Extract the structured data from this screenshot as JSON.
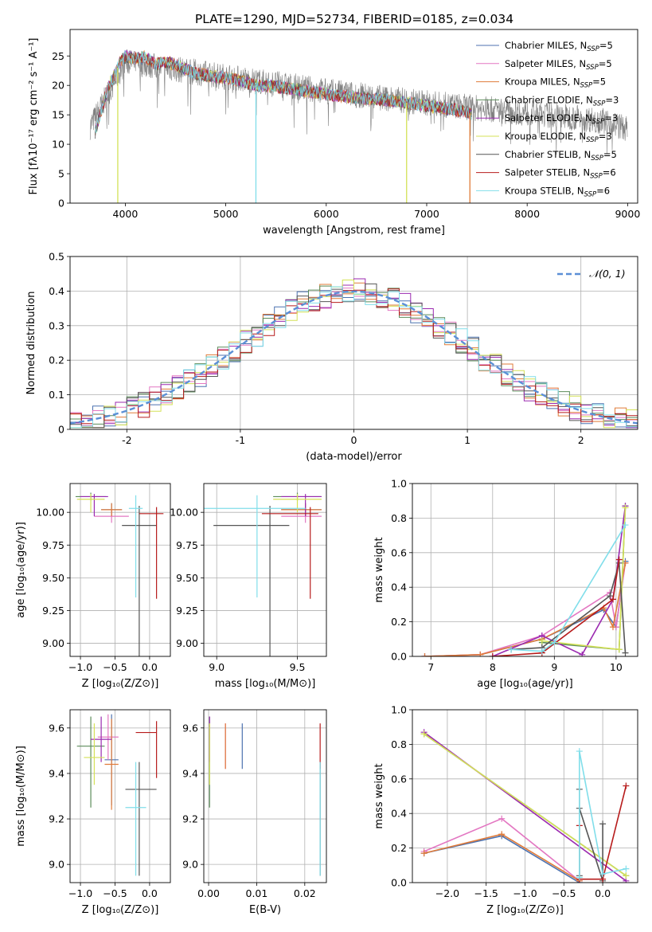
{
  "figure_title": "PLATE=1290, MJD=52734, FIBERID=0185, z=0.034",
  "models": [
    {
      "name": "Chabrier MILES, N",
      "sub": "SSP",
      "tail": "=5",
      "color": "#4c72b0"
    },
    {
      "name": "Salpeter MILES, N",
      "sub": "SSP",
      "tail": "=5",
      "color": "#e377c2"
    },
    {
      "name": "Kroupa MILES, N",
      "sub": "SSP",
      "tail": "=5",
      "color": "#e07b39"
    },
    {
      "name": "Chabrier ELODIE, N",
      "sub": "SSP",
      "tail": "=3",
      "color": "#5b8c5a"
    },
    {
      "name": "Salpeter ELODIE, N",
      "sub": "SSP",
      "tail": "=3",
      "color": "#9b2ab0"
    },
    {
      "name": "Kroupa ELODIE, N",
      "sub": "SSP",
      "tail": "=3",
      "color": "#d4e157"
    },
    {
      "name": "Chabrier STELIB, N",
      "sub": "SSP",
      "tail": "=5",
      "color": "#555555"
    },
    {
      "name": "Salpeter STELIB, N",
      "sub": "SSP",
      "tail": "=6",
      "color": "#b71c1c"
    },
    {
      "name": "Kroupa STELIB, N",
      "sub": "SSP",
      "tail": "=6",
      "color": "#80deea"
    }
  ],
  "chart_data": [
    {
      "id": "spectrum",
      "type": "line",
      "xlabel": "wavelength [Angstrom, rest frame]",
      "ylabel": "Flux [fλ10⁻¹⁷ erg cm⁻² s⁻¹ A⁻¹]",
      "xlim": [
        3450,
        9100
      ],
      "ylim": [
        0,
        29.5
      ],
      "xticks": [
        4000,
        5000,
        6000,
        7000,
        8000,
        9000
      ],
      "yticks": [
        0,
        5,
        10,
        15,
        20,
        25
      ],
      "continuum": {
        "x": [
          3700,
          3750,
          3800,
          3850,
          3900,
          3950,
          4000,
          4100,
          4200,
          4300,
          4400,
          4500,
          4700,
          4900,
          5100,
          5300,
          5500,
          5700,
          5900,
          6100,
          6300,
          6500,
          6700,
          6900,
          7100,
          7300,
          7450
        ],
        "y": [
          12,
          15,
          18,
          20.5,
          22,
          24,
          25,
          24.5,
          24.8,
          23.5,
          24,
          23.5,
          22,
          21.5,
          21,
          20,
          19.8,
          19.3,
          18.8,
          18.3,
          17.9,
          17.6,
          17.3,
          16.8,
          16.3,
          15.8,
          15.2
        ]
      },
      "noise_continuum": {
        "x": [
          3650,
          4000,
          5000,
          6000,
          7000,
          8000,
          8500,
          8800,
          9000
        ],
        "y": [
          13,
          24,
          21.5,
          19,
          17,
          15.3,
          14.5,
          13.9,
          12.5
        ]
      },
      "dips": [
        {
          "x": 3925,
          "color": "#d4e157"
        },
        {
          "x": 5300,
          "color": "#80deea"
        },
        {
          "x": 6800,
          "color": "#d4e157"
        },
        {
          "x": 7430,
          "color": "#e07b39"
        }
      ]
    },
    {
      "id": "residuals",
      "type": "histogram",
      "xlabel": "(data-model)/error",
      "ylabel": "Normed distribution",
      "xlim": [
        -2.5,
        2.5
      ],
      "ylim": [
        0,
        0.5
      ],
      "xticks": [
        -2,
        -1,
        0,
        1,
        2
      ],
      "yticks": [
        0,
        0.1,
        0.2,
        0.3,
        0.4,
        0.5
      ],
      "bins": {
        "start": -2.5,
        "width": 0.1,
        "count": 50
      },
      "reference": {
        "label": "𝒩(0, 1)",
        "mean": 0,
        "sigma": 1,
        "color": "#5b8fd6"
      }
    },
    {
      "id": "age-vs-Z",
      "type": "errorbar",
      "xlabel": "Z [log₁₀(Z/Z⊙)]",
      "ylabel": "age  [log₁₀(age/yr)]",
      "xlim": [
        -1.15,
        0.3
      ],
      "ylim": [
        8.9,
        10.22
      ],
      "xticks": [
        -1.0,
        -0.5,
        0.0
      ],
      "xtick_labels": [
        "−1.0",
        "−0.5",
        "0.0"
      ],
      "yticks": [
        9.0,
        9.25,
        9.5,
        9.75,
        10.0
      ],
      "ytick_labels": [
        "9.00",
        "9.25",
        "9.50",
        "9.75",
        "10.00"
      ],
      "points": [
        {
          "m": 0,
          "x": -0.55,
          "xe": [
            0.15,
            0.15
          ],
          "y": 10.02,
          "ye": [
            0.05,
            0.05
          ]
        },
        {
          "m": 1,
          "x": -0.55,
          "xe": [
            0.25,
            0.25
          ],
          "y": 9.97,
          "ye": [
            0.05,
            0.05
          ]
        },
        {
          "m": 2,
          "x": -0.55,
          "xe": [
            0.15,
            0.15
          ],
          "y": 10.02,
          "ye": [
            0.05,
            0.05
          ]
        },
        {
          "m": 3,
          "x": -0.85,
          "xe": [
            0.22,
            0.22
          ],
          "y": 10.12,
          "ye": [
            0.03,
            0.03
          ]
        },
        {
          "m": 4,
          "x": -0.8,
          "xe": [
            0.2,
            0.2
          ],
          "y": 10.12,
          "ye": [
            0.15,
            0.02
          ]
        },
        {
          "m": 5,
          "x": -0.85,
          "xe": [
            0.2,
            0.2
          ],
          "y": 10.1,
          "ye": [
            0.1,
            0.04
          ]
        },
        {
          "m": 6,
          "x": -0.15,
          "xe": [
            0.25,
            0.25
          ],
          "y": 9.9,
          "ye": [
            1.05,
            0.15
          ]
        },
        {
          "m": 7,
          "x": 0.1,
          "xe": [
            0.25,
            0.1
          ],
          "y": 9.99,
          "ye": [
            0.65,
            0.05
          ]
        },
        {
          "m": 8,
          "x": -0.2,
          "xe": [
            0.1,
            0.1
          ],
          "y": 10.03,
          "ye": [
            0.68,
            0.1
          ]
        }
      ]
    },
    {
      "id": "age-vs-mass",
      "type": "errorbar",
      "xlabel": "mass [log₁₀(M/M⊙)]",
      "ylabel": "",
      "xlim": [
        8.92,
        9.68
      ],
      "ylim": [
        8.9,
        10.22
      ],
      "xticks": [
        9.0,
        9.5
      ],
      "xtick_labels": [
        "9.0",
        "9.5"
      ],
      "yticks": [
        9.0,
        9.25,
        9.5,
        9.75,
        10.0
      ],
      "ytick_labels": [
        "9.00",
        "9.25",
        "9.50",
        "9.75",
        "10.00"
      ],
      "points": [
        {
          "m": 0,
          "x": 9.55,
          "xe": [
            0.15,
            0.1
          ],
          "y": 10.02,
          "ye": [
            0.05,
            0.05
          ]
        },
        {
          "m": 1,
          "x": 9.55,
          "xe": [
            0.15,
            0.1
          ],
          "y": 9.97,
          "ye": [
            0.05,
            0.05
          ]
        },
        {
          "m": 2,
          "x": 9.55,
          "xe": [
            0.15,
            0.1
          ],
          "y": 10.02,
          "ye": [
            0.05,
            0.05
          ]
        },
        {
          "m": 3,
          "x": 9.5,
          "xe": [
            0.15,
            0.15
          ],
          "y": 10.12,
          "ye": [
            0.03,
            0.03
          ]
        },
        {
          "m": 4,
          "x": 9.55,
          "xe": [
            0.15,
            0.1
          ],
          "y": 10.12,
          "ye": [
            0.15,
            0.02
          ]
        },
        {
          "m": 5,
          "x": 9.5,
          "xe": [
            0.15,
            0.15
          ],
          "y": 10.1,
          "ye": [
            0.1,
            0.04
          ]
        },
        {
          "m": 6,
          "x": 9.33,
          "xe": [
            0.35,
            0.12
          ],
          "y": 9.9,
          "ye": [
            1.05,
            0.15
          ]
        },
        {
          "m": 7,
          "x": 9.58,
          "xe": [
            0.3,
            0.05
          ],
          "y": 9.99,
          "ye": [
            0.65,
            0.05
          ]
        },
        {
          "m": 8,
          "x": 9.25,
          "xe": [
            0.35,
            0.3
          ],
          "y": 10.03,
          "ye": [
            0.68,
            0.1
          ]
        }
      ]
    },
    {
      "id": "weight-vs-age",
      "type": "line",
      "xlabel": "age  [log₁₀(age/yr)]",
      "ylabel": "mass weight",
      "xlim": [
        6.7,
        10.35
      ],
      "ylim": [
        0,
        1.0
      ],
      "xticks": [
        7,
        8,
        9,
        10
      ],
      "xtick_labels": [
        "7",
        "8",
        "9",
        "10"
      ],
      "yticks": [
        0,
        0.2,
        0.4,
        0.6,
        0.8,
        1.0
      ],
      "ytick_labels": [
        "0.0",
        "0.2",
        "0.4",
        "0.6",
        "0.8",
        "1.0"
      ],
      "series": [
        {
          "m": 0,
          "x": [
            6.9,
            7.8,
            8.8,
            9.8,
            10.0,
            10.15
          ],
          "y": [
            0.0,
            0.01,
            0.1,
            0.27,
            0.17,
            0.55
          ]
        },
        {
          "m": 1,
          "x": [
            6.9,
            7.8,
            8.8,
            9.9,
            10.0,
            10.15
          ],
          "y": [
            0.0,
            0.01,
            0.12,
            0.37,
            0.17,
            0.54
          ]
        },
        {
          "m": 2,
          "x": [
            6.9,
            7.8,
            8.8,
            9.8,
            9.95,
            10.15
          ],
          "y": [
            0.0,
            0.01,
            0.1,
            0.28,
            0.17,
            0.54
          ]
        },
        {
          "m": 3,
          "x": [
            8.8,
            10.05,
            10.15
          ],
          "y": [
            0.08,
            0.04,
            0.87
          ]
        },
        {
          "m": 4,
          "x": [
            8.0,
            8.8,
            9.45,
            9.95,
            10.15
          ],
          "y": [
            0.0,
            0.12,
            0.01,
            0.33,
            0.87
          ]
        },
        {
          "m": 5,
          "x": [
            8.8,
            10.05,
            10.15
          ],
          "y": [
            0.09,
            0.04,
            0.86
          ]
        },
        {
          "m": 6,
          "x": [
            8.3,
            8.8,
            9.9,
            10.05,
            10.15
          ],
          "y": [
            0.04,
            0.05,
            0.35,
            0.54,
            0.02
          ]
        },
        {
          "m": 7,
          "x": [
            8.0,
            8.8,
            9.95,
            10.05
          ],
          "y": [
            0.0,
            0.02,
            0.33,
            0.56
          ]
        },
        {
          "m": 8,
          "x": [
            8.3,
            8.8,
            9.0,
            10.15
          ],
          "y": [
            0.04,
            0.03,
            0.08,
            0.76
          ]
        }
      ]
    },
    {
      "id": "mass-vs-Z",
      "type": "errorbar",
      "xlabel": "Z [log₁₀(Z/Z⊙)]",
      "ylabel": "mass [log₁₀(M/M⊙)]",
      "xlim": [
        -1.15,
        0.3
      ],
      "ylim": [
        8.92,
        9.68
      ],
      "xticks": [
        -1.0,
        -0.5,
        0.0
      ],
      "xtick_labels": [
        "−1.0",
        "−0.5",
        "0.0"
      ],
      "yticks": [
        9.0,
        9.2,
        9.4,
        9.6
      ],
      "ytick_labels": [
        "9.0",
        "9.2",
        "9.4",
        "9.6"
      ],
      "points": [
        {
          "m": 0,
          "x": -0.55,
          "xe": [
            0.1,
            0.1
          ],
          "y": 9.46,
          "ye": [
            0.2,
            0.2
          ]
        },
        {
          "m": 1,
          "x": -0.6,
          "xe": [
            0.15,
            0.15
          ],
          "y": 9.56,
          "ye": [
            0.1,
            0.1
          ]
        },
        {
          "m": 2,
          "x": -0.55,
          "xe": [
            0.1,
            0.1
          ],
          "y": 9.44,
          "ye": [
            0.2,
            0.2
          ]
        },
        {
          "m": 3,
          "x": -0.85,
          "xe": [
            0.2,
            0.2
          ],
          "y": 9.52,
          "ye": [
            0.27,
            0.13
          ]
        },
        {
          "m": 4,
          "x": -0.7,
          "xe": [
            0.15,
            0.15
          ],
          "y": 9.55,
          "ye": [
            0.1,
            0.1
          ]
        },
        {
          "m": 5,
          "x": -0.8,
          "xe": [
            0.15,
            0.15
          ],
          "y": 9.47,
          "ye": [
            0.12,
            0.15
          ]
        },
        {
          "m": 6,
          "x": -0.15,
          "xe": [
            0.2,
            0.25
          ],
          "y": 9.33,
          "ye": [
            0.38,
            0.12
          ]
        },
        {
          "m": 7,
          "x": 0.1,
          "xe": [
            0.3,
            0.0
          ],
          "y": 9.58,
          "ye": [
            0.2,
            0.05
          ]
        },
        {
          "m": 8,
          "x": -0.2,
          "xe": [
            0.15,
            0.15
          ],
          "y": 9.25,
          "ye": [
            0.3,
            0.2
          ]
        }
      ]
    },
    {
      "id": "mass-vs-EBV",
      "type": "errorbar",
      "xlabel": "E(B-V)",
      "ylabel": "",
      "xlim": [
        -0.001,
        0.0245
      ],
      "ylim": [
        8.92,
        9.68
      ],
      "xticks": [
        0.0,
        0.01,
        0.02
      ],
      "xtick_labels": [
        "0.00",
        "0.01",
        "0.02"
      ],
      "yticks": [
        9.0,
        9.2,
        9.4,
        9.6
      ],
      "ytick_labels": [
        "9.0",
        "9.2",
        "9.4",
        "9.6"
      ],
      "points": [
        {
          "m": 0,
          "x": 0.007,
          "xe": [
            0,
            0
          ],
          "y": 9.52,
          "ye": [
            0.1,
            0.1
          ]
        },
        {
          "m": 1,
          "x": 0.0035,
          "xe": [
            0,
            0
          ],
          "y": 9.52,
          "ye": [
            0.1,
            0.1
          ]
        },
        {
          "m": 2,
          "x": 0.0035,
          "xe": [
            0,
            0
          ],
          "y": 9.52,
          "ye": [
            0.1,
            0.1
          ]
        },
        {
          "m": 3,
          "x": 0.0002,
          "xe": [
            0,
            0
          ],
          "y": 9.45,
          "ye": [
            0.2,
            0.2
          ]
        },
        {
          "m": 4,
          "x": 0.0002,
          "xe": [
            0,
            0
          ],
          "y": 9.55,
          "ye": [
            0.1,
            0.1
          ]
        },
        {
          "m": 5,
          "x": 0.0002,
          "xe": [
            0,
            0
          ],
          "y": 9.47,
          "ye": [
            0.12,
            0.15
          ]
        },
        {
          "m": 6,
          "x": 0.0232,
          "xe": [
            0,
            0
          ],
          "y": 9.2,
          "ye": [
            0.25,
            0.25
          ]
        },
        {
          "m": 7,
          "x": 0.0232,
          "xe": [
            0,
            0
          ],
          "y": 9.52,
          "ye": [
            0.1,
            0.1
          ]
        },
        {
          "m": 8,
          "x": 0.0232,
          "xe": [
            0,
            0
          ],
          "y": 9.2,
          "ye": [
            0.25,
            0.25
          ]
        }
      ]
    },
    {
      "id": "weight-vs-Z",
      "type": "line",
      "xlabel": "Z [log₁₀(Z/Z⊙)]",
      "ylabel": "mass weight",
      "xlim": [
        -2.45,
        0.45
      ],
      "ylim": [
        0,
        1.0
      ],
      "xticks": [
        -2.0,
        -1.5,
        -1.0,
        -0.5,
        0.0
      ],
      "xtick_labels": [
        "−2.0",
        "−1.5",
        "−1.0",
        "−0.5",
        "0.0"
      ],
      "yticks": [
        0,
        0.2,
        0.4,
        0.6,
        0.8,
        1.0
      ],
      "ytick_labels": [
        "0.0",
        "0.2",
        "0.4",
        "0.6",
        "0.8",
        "1.0"
      ],
      "series": [
        {
          "m": 0,
          "x": [
            -2.3,
            -1.3,
            -0.3
          ],
          "y": [
            0.17,
            0.27,
            0.0
          ]
        },
        {
          "m": 1,
          "x": [
            -2.3,
            -1.3,
            -0.3
          ],
          "y": [
            0.18,
            0.37,
            0.01
          ]
        },
        {
          "m": 2,
          "x": [
            -2.3,
            -1.3,
            -0.3
          ],
          "y": [
            0.17,
            0.28,
            0.01
          ]
        },
        {
          "m": 3,
          "x": [
            -2.3,
            0.3
          ],
          "y": [
            0.86,
            0.04
          ]
        },
        {
          "m": 4,
          "x": [
            -2.3,
            0.3
          ],
          "y": [
            0.87,
            0.01
          ]
        },
        {
          "m": 5,
          "x": [
            -2.3,
            0.3
          ],
          "y": [
            0.86,
            0.04
          ]
        },
        {
          "m": 6,
          "x": [
            -0.3,
            -0.3,
            -0.3,
            0.0,
            0.0
          ],
          "y": [
            0.04,
            0.54,
            0.43,
            0.01,
            0.34
          ]
        },
        {
          "m": 7,
          "x": [
            -0.3,
            -0.3,
            0.0,
            0.3
          ],
          "y": [
            0.33,
            0.02,
            0.02,
            0.56
          ]
        },
        {
          "m": 8,
          "x": [
            -0.3,
            -0.3,
            0.0,
            0.3
          ],
          "y": [
            0.03,
            0.76,
            0.05,
            0.08
          ]
        }
      ]
    }
  ]
}
